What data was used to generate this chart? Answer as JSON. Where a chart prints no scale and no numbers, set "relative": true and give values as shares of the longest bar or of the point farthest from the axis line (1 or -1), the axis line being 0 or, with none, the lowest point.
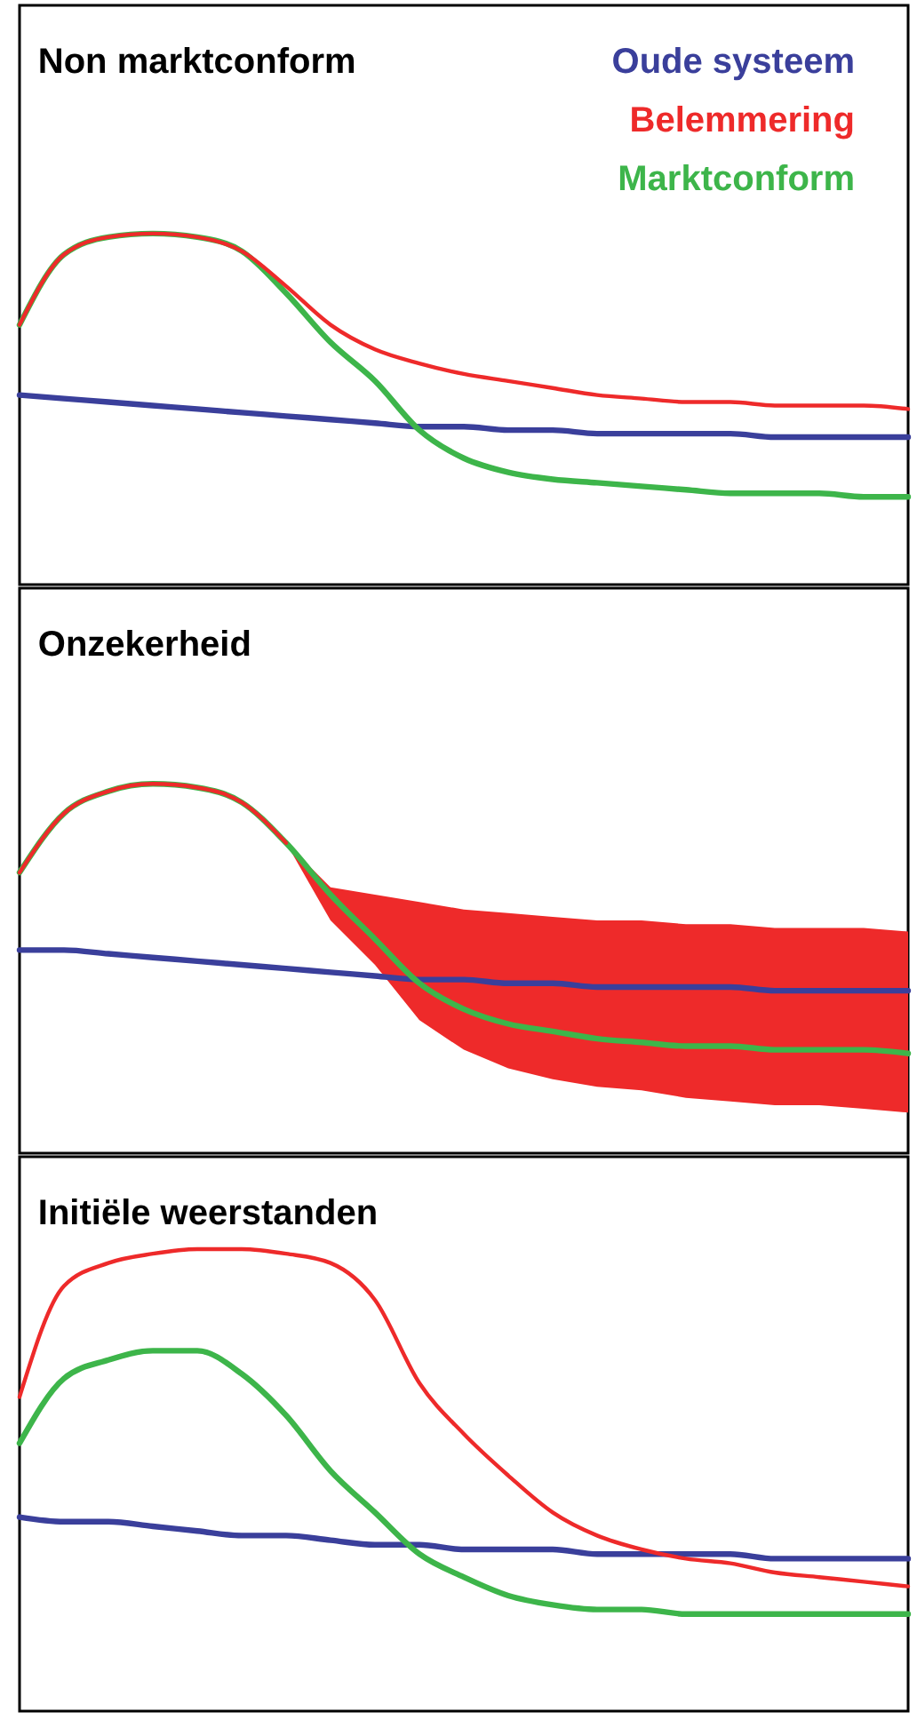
{
  "chart_data": [
    {
      "type": "line",
      "title": "Non marktconform",
      "relative": true,
      "legend": "top right",
      "tick_labels": false,
      "categories": [
        null,
        null,
        null,
        null,
        null,
        null,
        null,
        null,
        null,
        null,
        null,
        null,
        null,
        null,
        null,
        null,
        null,
        null,
        null,
        null,
        null
      ],
      "series": [
        {
          "name": "Oude systeem",
          "color": "#3a3f9b",
          "values": [
            0.54,
            0.53,
            0.52,
            0.51,
            0.5,
            0.49,
            0.48,
            0.47,
            0.46,
            0.45,
            0.45,
            0.44,
            0.44,
            0.43,
            0.43,
            0.43,
            0.43,
            0.42,
            0.42,
            0.42,
            0.42
          ]
        },
        {
          "name": "Belemmering",
          "color": "#ee2a2a",
          "values": [
            0.74,
            0.94,
            0.99,
            1,
            0.99,
            0.95,
            0.85,
            0.74,
            0.67,
            0.63,
            0.6,
            0.58,
            0.56,
            0.54,
            0.53,
            0.52,
            0.52,
            0.51,
            0.51,
            0.51,
            0.5
          ]
        },
        {
          "name": "Marktconform",
          "color": "#3db54a",
          "values": [
            0.74,
            0.94,
            0.99,
            1,
            0.99,
            0.95,
            0.83,
            0.69,
            0.58,
            0.44,
            0.36,
            0.32,
            0.3,
            0.29,
            0.28,
            0.27,
            0.26,
            0.26,
            0.26,
            0.25,
            0.25
          ]
        }
      ]
    },
    {
      "type": "line",
      "title": "Onzekerheid",
      "relative": true,
      "tick_labels": false,
      "categories": [
        null,
        null,
        null,
        null,
        null,
        null,
        null,
        null,
        null,
        null,
        null,
        null,
        null,
        null,
        null,
        null,
        null,
        null,
        null,
        null,
        null
      ],
      "series": [
        {
          "color": "#3a3f9b",
          "values": [
            0.55,
            0.55,
            0.54,
            0.53,
            0.52,
            0.51,
            0.5,
            0.49,
            0.48,
            0.47,
            0.47,
            0.46,
            0.46,
            0.45,
            0.45,
            0.45,
            0.45,
            0.44,
            0.44,
            0.44,
            0.44
          ]
        },
        {
          "color": "#ee2a2a",
          "values": [
            0.76,
            0.92,
            0.98,
            1,
            0.99,
            0.95,
            0.84,
            null,
            null,
            null,
            null,
            null,
            null,
            null,
            null,
            null,
            null,
            null,
            null,
            null,
            null
          ],
          "lower": [
            null,
            null,
            null,
            null,
            null,
            null,
            0.84,
            0.63,
            0.51,
            0.36,
            0.28,
            0.23,
            0.2,
            0.18,
            0.17,
            0.15,
            0.14,
            0.13,
            0.13,
            0.12,
            0.11
          ],
          "upper": [
            null,
            null,
            null,
            null,
            null,
            null,
            0.84,
            0.72,
            0.7,
            0.68,
            0.66,
            0.65,
            0.64,
            0.63,
            0.63,
            0.62,
            0.62,
            0.61,
            0.61,
            0.61,
            0.6
          ]
        },
        {
          "color": "#3db54a",
          "values": [
            0.76,
            0.92,
            0.98,
            1,
            0.99,
            0.95,
            0.84,
            0.7,
            0.58,
            0.46,
            0.39,
            0.35,
            0.33,
            0.31,
            0.3,
            0.29,
            0.29,
            0.28,
            0.28,
            0.28,
            0.27
          ]
        }
      ]
    },
    {
      "type": "line",
      "title": "Initiële weerstanden",
      "relative": true,
      "tick_labels": false,
      "categories": [
        null,
        null,
        null,
        null,
        null,
        null,
        null,
        null,
        null,
        null,
        null,
        null,
        null,
        null,
        null,
        null,
        null,
        null,
        null,
        null,
        null
      ],
      "series": [
        {
          "color": "#3a3f9b",
          "values": [
            0.42,
            0.41,
            0.41,
            0.4,
            0.39,
            0.38,
            0.38,
            0.37,
            0.36,
            0.36,
            0.35,
            0.35,
            0.35,
            0.34,
            0.34,
            0.34,
            0.34,
            0.33,
            0.33,
            0.33,
            0.33
          ]
        },
        {
          "color": "#ee2a2a",
          "values": [
            0.68,
            0.92,
            0.97,
            0.99,
            1,
            1,
            0.99,
            0.97,
            0.89,
            0.71,
            0.6,
            0.51,
            0.43,
            0.38,
            0.35,
            0.33,
            0.32,
            0.3,
            0.29,
            0.28,
            0.27
          ]
        },
        {
          "color": "#3db54a",
          "values": [
            0.58,
            0.72,
            0.76,
            0.78,
            0.78,
            0.73,
            0.64,
            0.52,
            0.43,
            0.34,
            0.29,
            0.25,
            0.23,
            0.22,
            0.22,
            0.21,
            0.21,
            0.21,
            0.21,
            0.21,
            0.21
          ]
        }
      ]
    }
  ]
}
